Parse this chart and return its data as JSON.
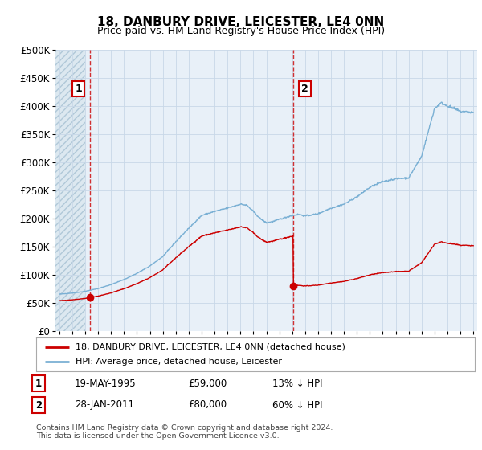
{
  "title": "18, DANBURY DRIVE, LEICESTER, LE4 0NN",
  "subtitle": "Price paid vs. HM Land Registry's House Price Index (HPI)",
  "ylim": [
    0,
    500000
  ],
  "xlim_start": 1992.7,
  "xlim_end": 2025.3,
  "purchase1_date": 1995.38,
  "purchase1_price": 59000,
  "purchase1_label": "1",
  "purchase2_date": 2011.08,
  "purchase2_price": 80000,
  "purchase2_label": "2",
  "property_line_color": "#cc0000",
  "hpi_line_color": "#7ab0d4",
  "grid_color": "#c8d8e8",
  "plot_bg_color": "#e8f0f8",
  "hatch_bg_color": "#dce8f0",
  "legend_property": "18, DANBURY DRIVE, LEICESTER, LE4 0NN (detached house)",
  "legend_hpi": "HPI: Average price, detached house, Leicester",
  "table_rows": [
    [
      "1",
      "19-MAY-1995",
      "£59,000",
      "13% ↓ HPI"
    ],
    [
      "2",
      "28-JAN-2011",
      "£80,000",
      "60% ↓ HPI"
    ]
  ],
  "footnote": "Contains HM Land Registry data © Crown copyright and database right 2024.\nThis data is licensed under the Open Government Licence v3.0.",
  "background_color": "#ffffff"
}
